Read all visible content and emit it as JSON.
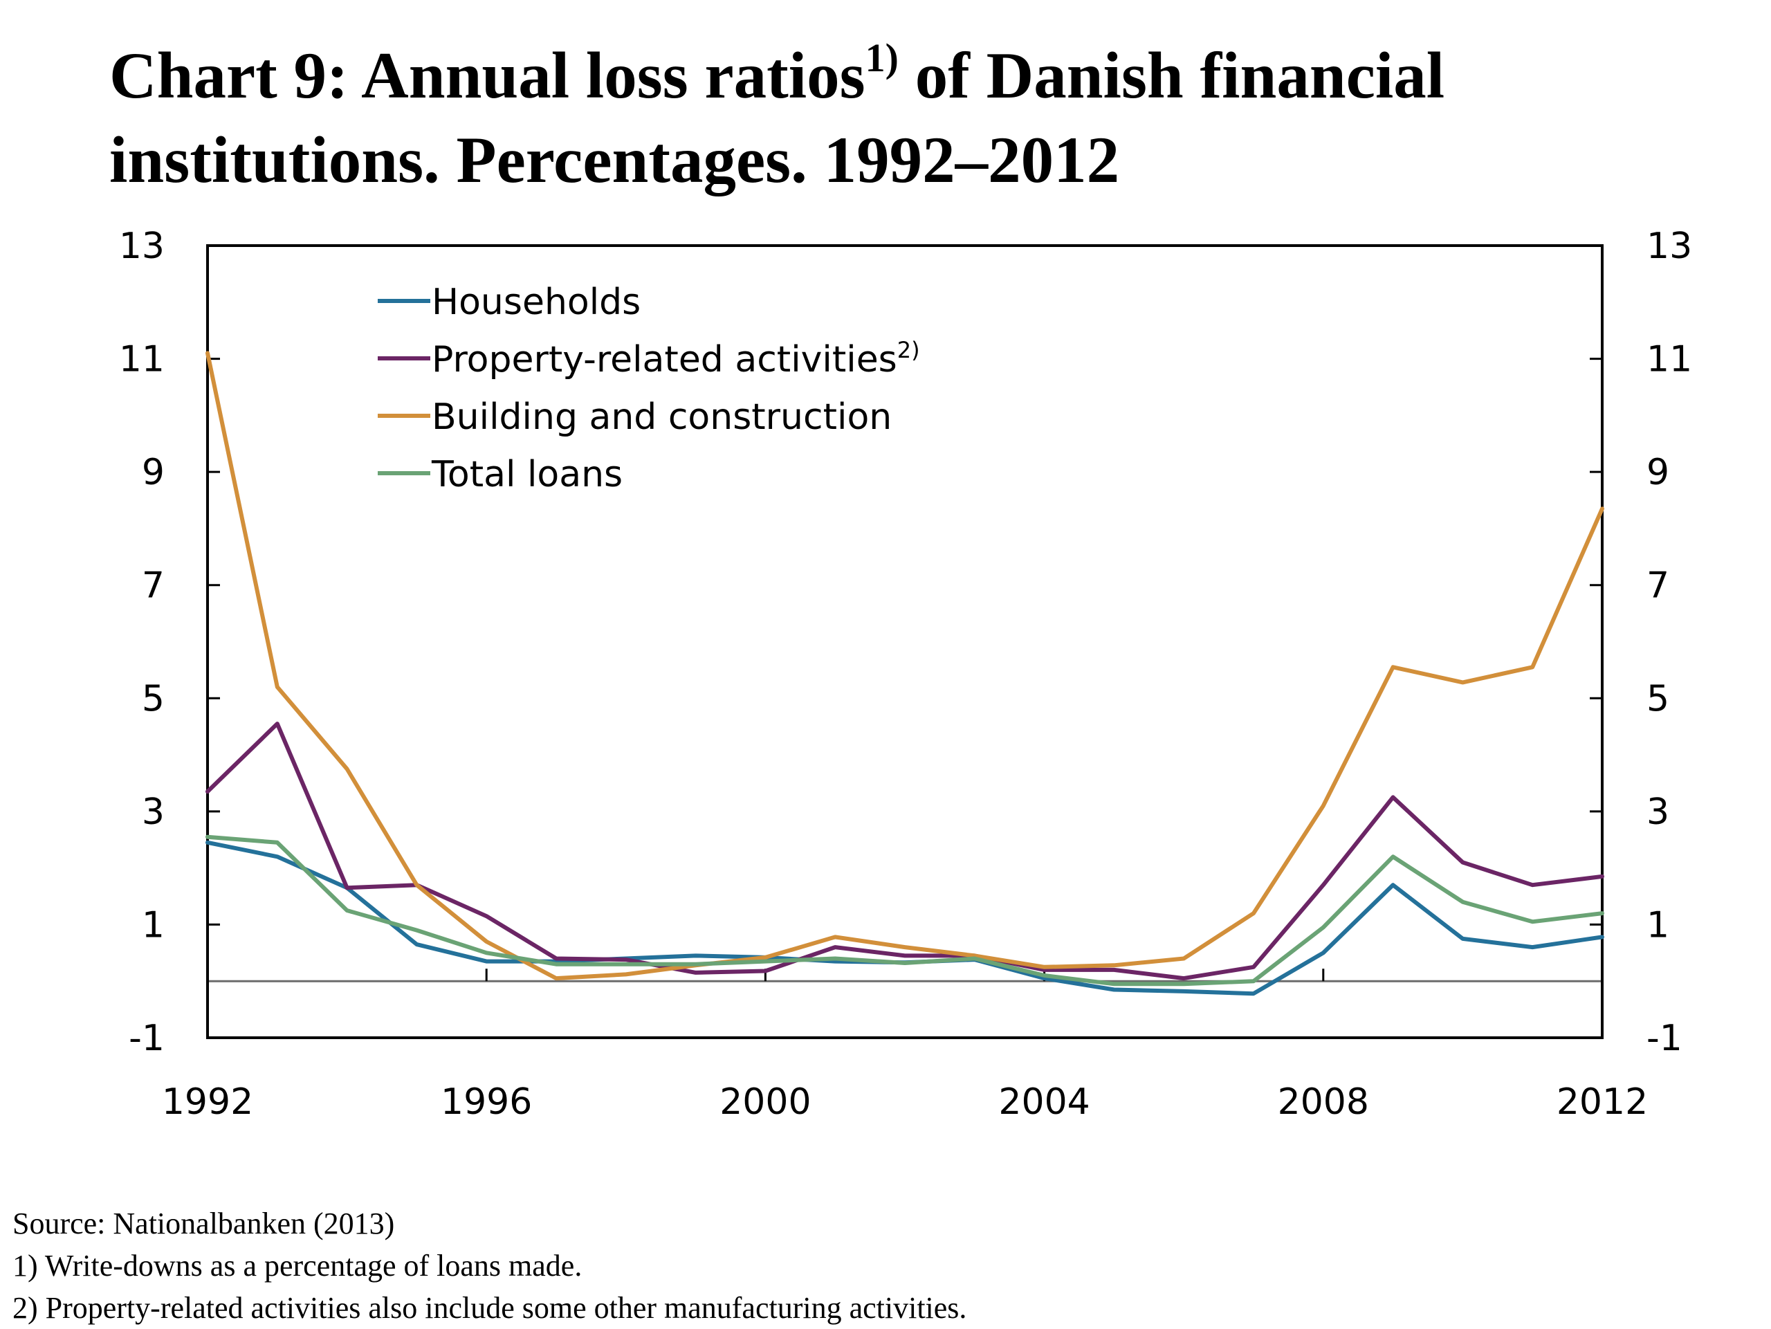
{
  "header": {
    "title_part1": "Chart 9: Annual loss ratios",
    "title_sup": "1)",
    "title_part2": " of Danish financial institutions. Percentages. 1992–2012"
  },
  "notes": {
    "source": "Source: Nationalbanken (2013)",
    "note1": "1) Write-downs as a percentage of loans made.",
    "note2": "2) Property-related activities also include some other manufacturing activities."
  },
  "chart_data": {
    "type": "line",
    "title": "Chart 9: Annual loss ratios1) of Danish financial institutions. Percentages. 1992–2012",
    "x": [
      1992,
      1993,
      1994,
      1995,
      1996,
      1997,
      1998,
      1999,
      2000,
      2001,
      2002,
      2003,
      2004,
      2005,
      2006,
      2007,
      2008,
      2009,
      2010,
      2011,
      2012
    ],
    "x_ticks": [
      "1992",
      "1996",
      "2000",
      "2004",
      "2008",
      "2012"
    ],
    "y_ticks": [
      "13",
      "11",
      "9",
      "7",
      "5",
      "3",
      "1",
      "-1"
    ],
    "ylim": [
      -1,
      13
    ],
    "xlim": [
      1992,
      2012
    ],
    "legend_position": "top-left",
    "grid": false,
    "zero_line": true,
    "dual_y_axis": true,
    "series": [
      {
        "name": "Households",
        "color": "#24719a",
        "values": [
          2.45,
          2.2,
          1.65,
          0.65,
          0.35,
          0.35,
          0.4,
          0.45,
          0.42,
          0.35,
          0.33,
          0.38,
          0.05,
          -0.15,
          -0.18,
          -0.22,
          0.5,
          1.7,
          0.75,
          0.6,
          0.78
        ]
      },
      {
        "name": "Property-related activities",
        "name_sup": "2)",
        "color": "#6b2565",
        "values": [
          3.35,
          4.55,
          1.65,
          1.7,
          1.15,
          0.4,
          0.38,
          0.15,
          0.18,
          0.6,
          0.45,
          0.45,
          0.2,
          0.2,
          0.05,
          0.25,
          1.7,
          3.25,
          2.1,
          1.7,
          1.85
        ]
      },
      {
        "name": "Building and construction",
        "color": "#d28f3a",
        "values": [
          11.1,
          5.2,
          3.75,
          1.7,
          0.7,
          0.05,
          0.12,
          0.28,
          0.42,
          0.78,
          0.6,
          0.45,
          0.25,
          0.28,
          0.4,
          1.2,
          3.1,
          5.55,
          5.28,
          5.55,
          8.35
        ]
      },
      {
        "name": "Total loans",
        "color": "#6aa375",
        "values": [
          2.55,
          2.45,
          1.25,
          0.9,
          0.5,
          0.3,
          0.3,
          0.3,
          0.35,
          0.4,
          0.32,
          0.4,
          0.1,
          -0.05,
          -0.05,
          0.0,
          0.95,
          2.2,
          1.4,
          1.05,
          1.2
        ]
      }
    ]
  }
}
